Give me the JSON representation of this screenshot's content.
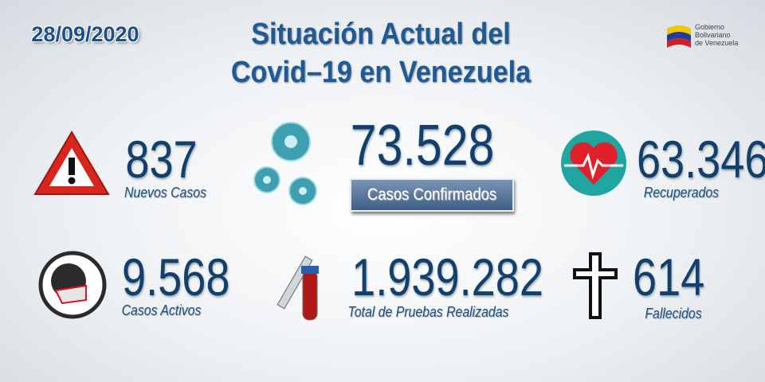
{
  "date": "28/09/2020",
  "title": [
    "Situación Actual del",
    "Covid–19 en Venezuela"
  ],
  "logo": [
    "Gobierno",
    "Bolivariano",
    "de Venezuela"
  ],
  "stats": [
    {
      "value": "837",
      "label": "Nuevos Casos"
    },
    {
      "value": "73.528",
      "label": "Casos Confirmados"
    },
    {
      "value": "63.346",
      "label": "Recuperados"
    },
    {
      "value": "9.568",
      "label": "Casos Activos"
    },
    {
      "value": "1.939.282",
      "label": "Total de Pruebas Realizadas"
    },
    {
      "value": "614",
      "label": "Fallecidos"
    }
  ]
}
